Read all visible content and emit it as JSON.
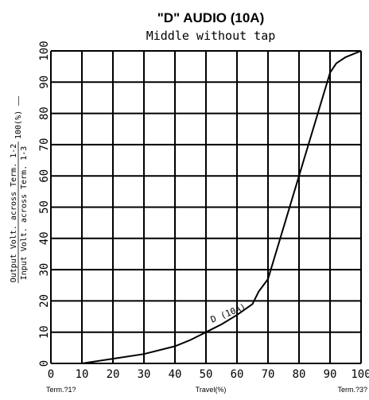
{
  "chart_data": {
    "type": "line",
    "title": "\"D\" AUDIO (10A)",
    "subtitle": "Middle without tap",
    "xlabel": "Travel(%)",
    "x_end_labels": [
      "Term.?1?",
      "Term.?3?"
    ],
    "ylabel_line1": "Output Volt. across Term. 1-2",
    "ylabel_line2": "Input Volt. across Term. 1-3",
    "ylabel_suffix": "100(%) ——",
    "xlim": [
      0,
      100
    ],
    "ylim": [
      0,
      100
    ],
    "x_ticks": [
      0,
      10,
      20,
      30,
      40,
      50,
      60,
      70,
      80,
      90,
      100
    ],
    "y_ticks": [
      0,
      10,
      20,
      30,
      40,
      50,
      60,
      70,
      80,
      90,
      100
    ],
    "grid": true,
    "series": [
      {
        "name": "D (10A)",
        "x": [
          10,
          20,
          30,
          40,
          45,
          50,
          55,
          60,
          65,
          67,
          70,
          80,
          90,
          92,
          95,
          100
        ],
        "y": [
          0,
          1.5,
          3,
          5.5,
          7.5,
          10,
          12.5,
          15.5,
          19,
          23,
          27,
          60,
          93,
          96,
          98,
          100
        ]
      }
    ]
  }
}
